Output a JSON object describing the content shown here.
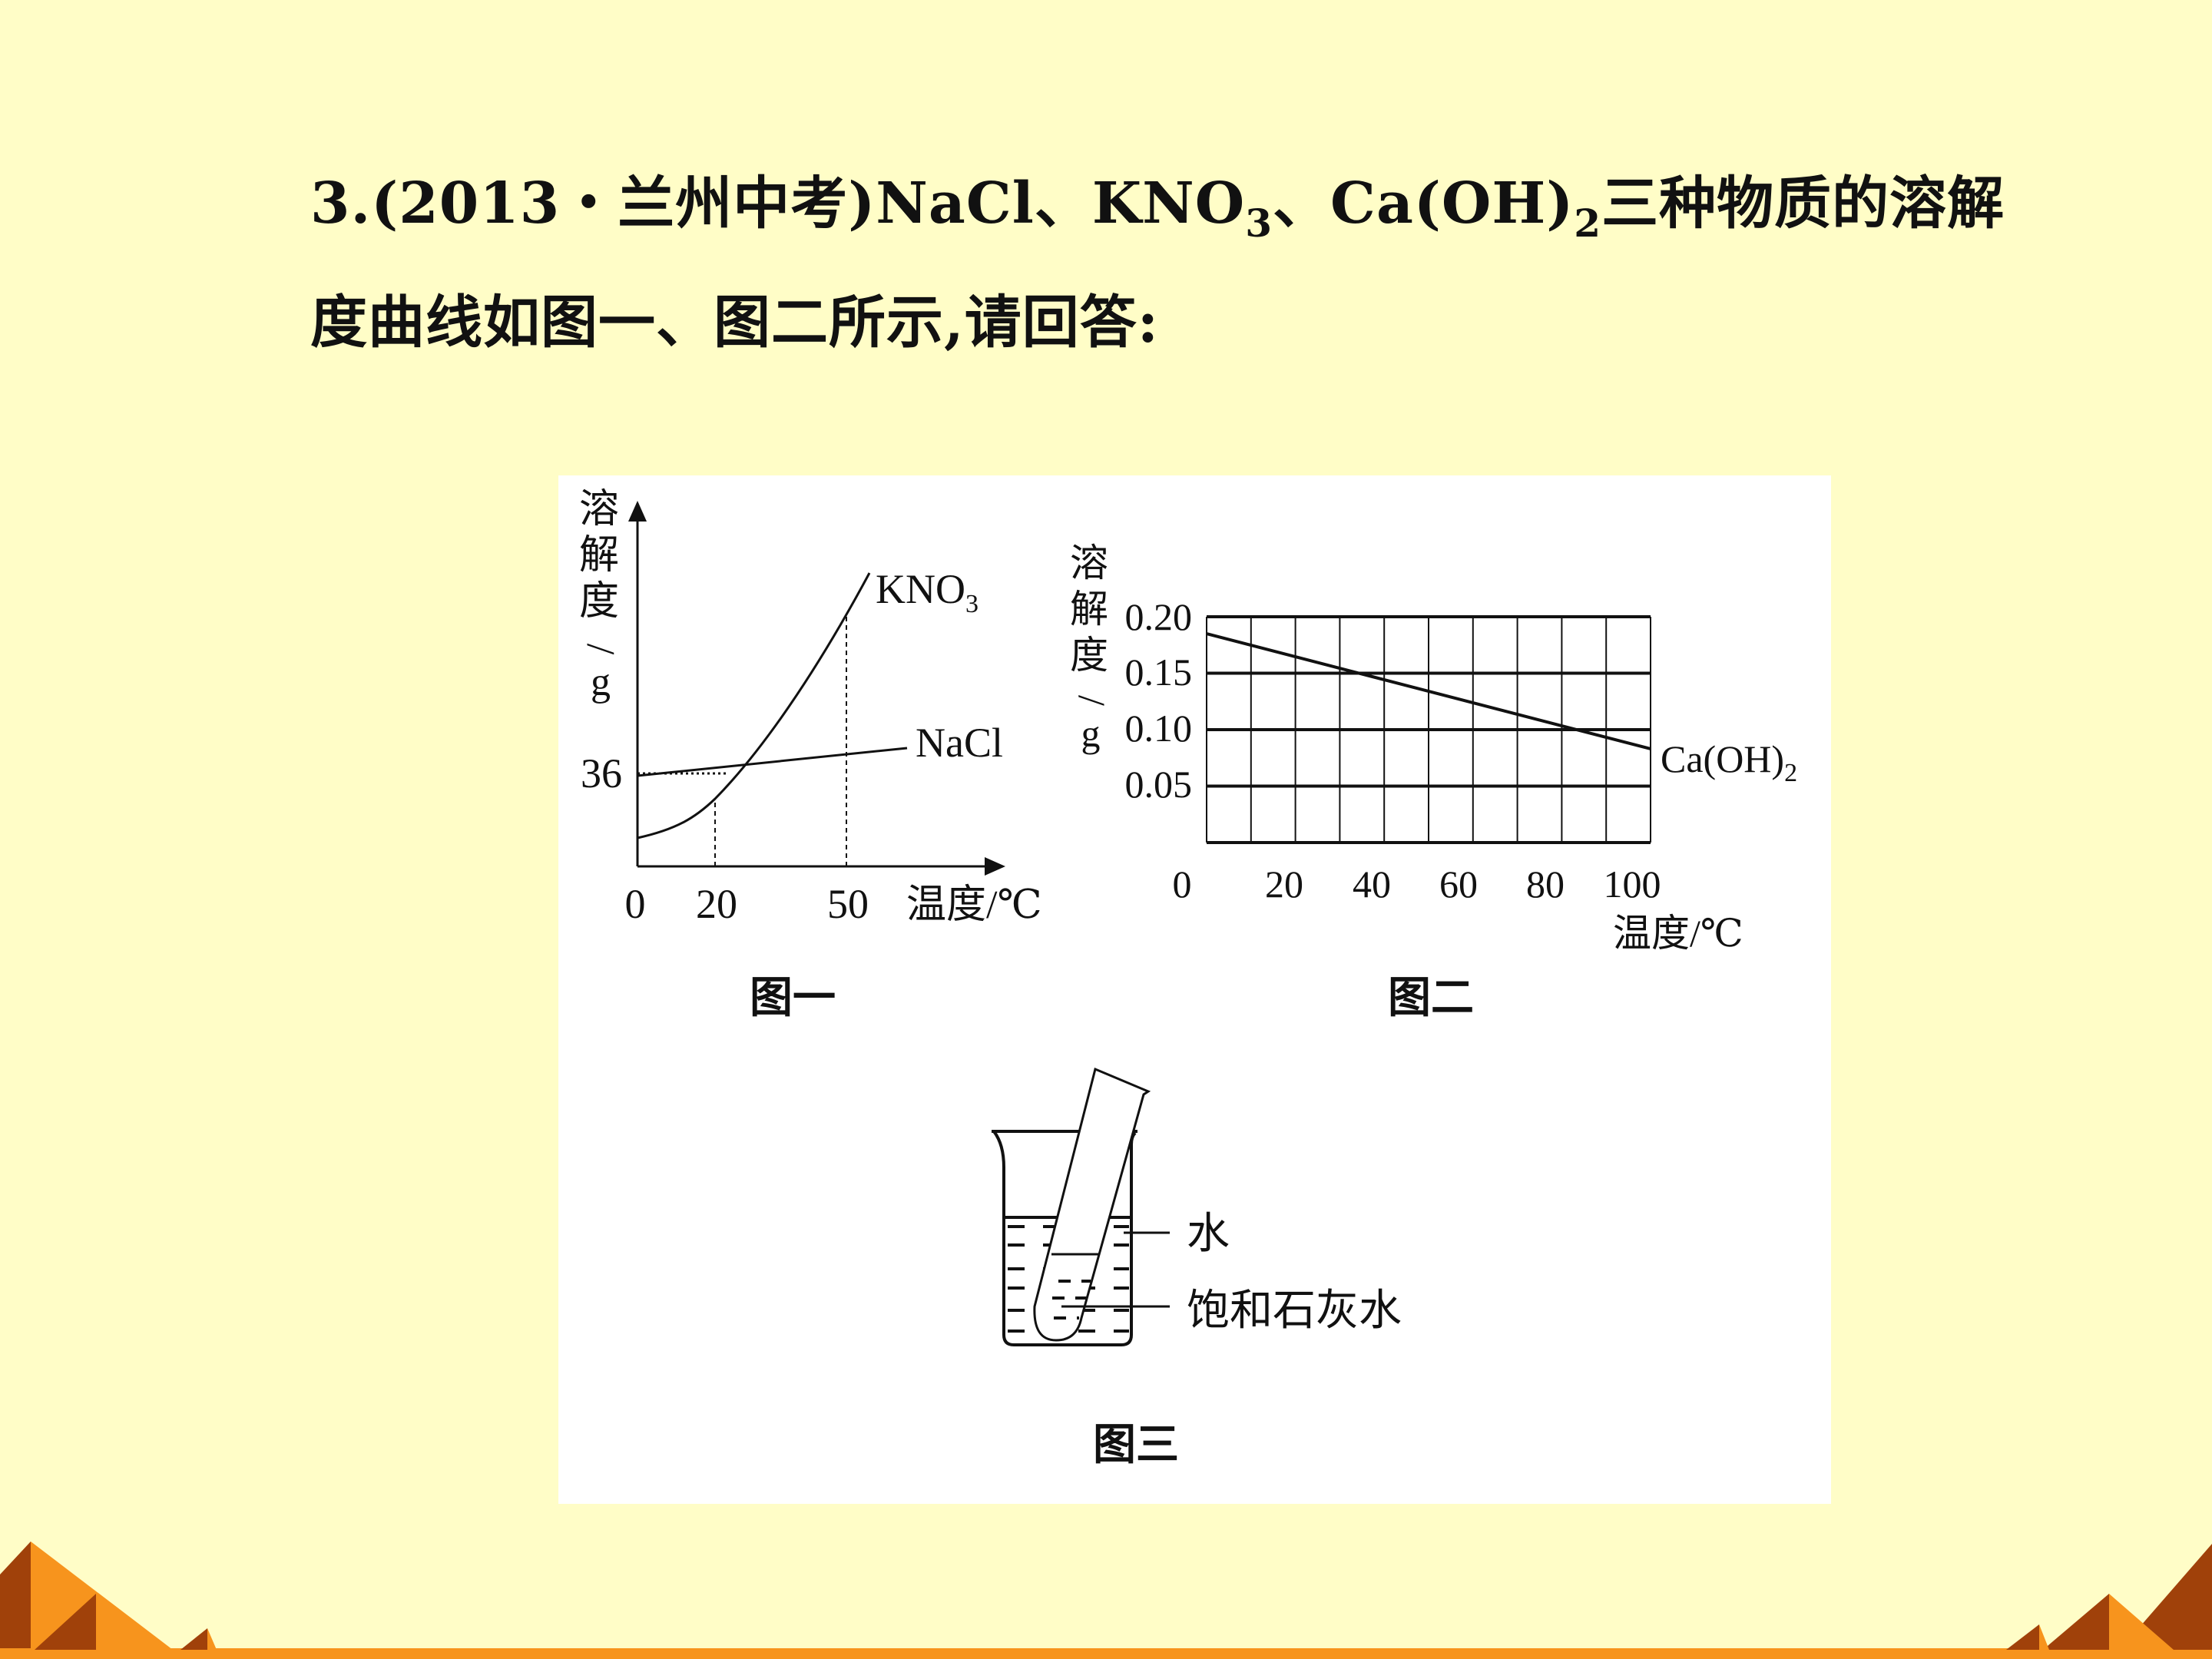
{
  "question": {
    "line1_parts": [
      "3.(2013・兰州中考)NaCl、KNO",
      "3",
      "、Ca(OH)",
      "2",
      "三种物质的溶解"
    ],
    "line2": "度曲线如图一、图二所示,请回答:"
  },
  "figure1": {
    "caption": "图一",
    "y_label_chars": [
      "溶",
      "解",
      "度",
      "/",
      "g"
    ],
    "y_tick": "36",
    "x_ticks": [
      "0",
      "20",
      "50"
    ],
    "x_label": "温度/℃",
    "series_labels": {
      "kno3": "KNO",
      "kno3_sub": "3",
      "nacl": "NaCl"
    }
  },
  "figure2": {
    "caption": "图二",
    "y_label_chars": [
      "溶",
      "解",
      "度",
      "/",
      "g"
    ],
    "y_ticks": [
      "0.20",
      "0.15",
      "0.10",
      "0.05"
    ],
    "x_ticks": [
      "0",
      "20",
      "40",
      "60",
      "80",
      "100"
    ],
    "x_label": "温度/℃",
    "series_label": "Ca(OH)",
    "series_label_sub": "2"
  },
  "figure3": {
    "caption": "图三",
    "label_water": "水",
    "label_limewater": "饱和石灰水"
  },
  "chart_data": [
    {
      "type": "line",
      "title": "图一",
      "xlabel": "温度/℃",
      "ylabel": "溶解度/g",
      "x_ticks": [
        0,
        20,
        50
      ],
      "y_ticks": [
        36
      ],
      "series": [
        {
          "name": "KNO3",
          "trend": "rising steeply, crosses NaCl just above 20℃"
        },
        {
          "name": "NaCl",
          "trend": "nearly flat, about 36 g at 20℃"
        }
      ]
    },
    {
      "type": "line",
      "title": "图二",
      "xlabel": "温度/℃",
      "ylabel": "溶解度/g",
      "xlim": [
        0,
        100
      ],
      "ylim": [
        0,
        0.2
      ],
      "grid": true,
      "series": [
        {
          "name": "Ca(OH)2",
          "x": [
            0,
            100
          ],
          "y": [
            0.185,
            0.083
          ]
        }
      ]
    }
  ],
  "colors": {
    "background": "#FFFDC7",
    "orange": "#F7941D",
    "brown": "#A0410A"
  }
}
